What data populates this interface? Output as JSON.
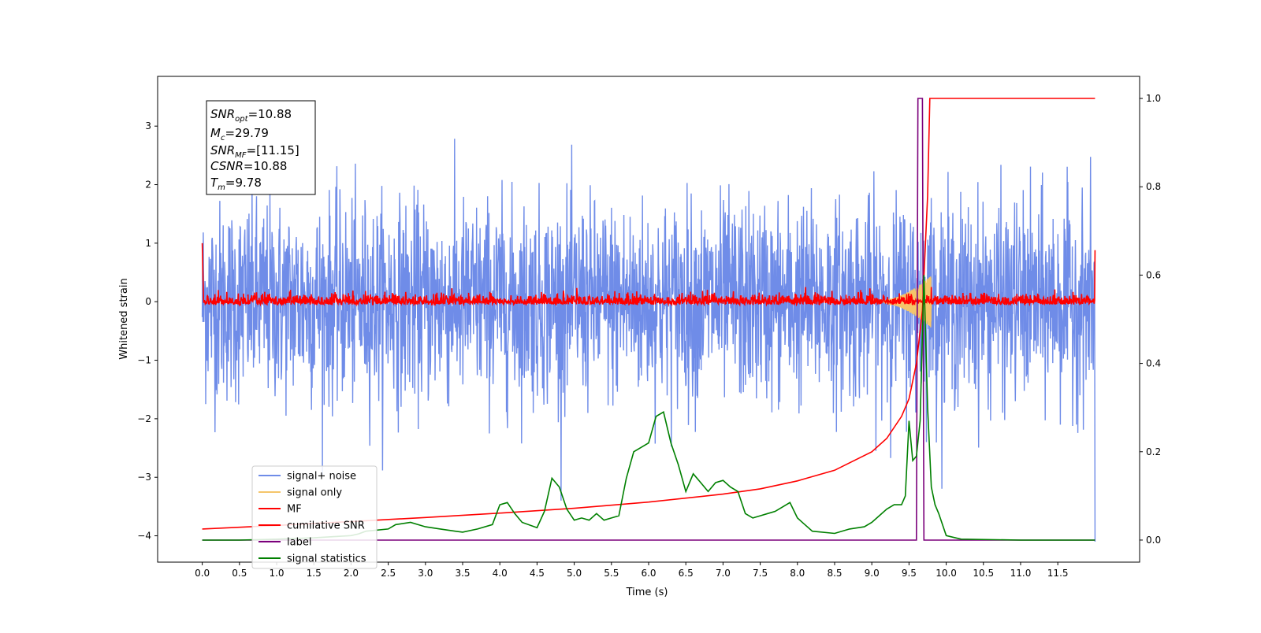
{
  "chart_data": {
    "type": "line",
    "xlabel": "Time (s)",
    "ylabel": "Whitened strain",
    "xlim": [
      -0.6,
      12.6
    ],
    "ylim_left": [
      -4.45,
      3.85
    ],
    "ylim_right": [
      -0.05,
      1.05
    ],
    "x_ticks": [
      "0.0",
      "0.5",
      "1.0",
      "1.5",
      "2.0",
      "2.5",
      "3.0",
      "3.5",
      "4.0",
      "4.5",
      "5.0",
      "5.5",
      "6.0",
      "6.5",
      "7.0",
      "7.5",
      "8.0",
      "8.5",
      "9.0",
      "9.5",
      "10.0",
      "10.5",
      "11.0",
      "11.5"
    ],
    "y_ticks_left": [
      "−4",
      "−3",
      "−2",
      "−1",
      "0",
      "1",
      "2",
      "3"
    ],
    "y_ticks_right": [
      "0.0",
      "0.2",
      "0.4",
      "0.6",
      "0.8",
      "1.0"
    ],
    "legend_position": "lower-left",
    "colors": {
      "signal_noise": "#6f8ce8",
      "signal_only": "#f5c56a",
      "mf": "#ff0000",
      "cumulative_snr": "#ff0000",
      "label": "#7b007b",
      "signal_statistics": "#008000"
    },
    "annotation": {
      "snr_opt": "=10.88",
      "mc": "=29.79",
      "snr_mf": "=[11.15]",
      "csnr": "=10.88",
      "tm": "=9.78"
    },
    "series": [
      {
        "name": "signal+ noise",
        "axis": "left",
        "kind": "noise",
        "x_range": [
          0,
          12
        ],
        "approx_std": 0.85,
        "peak_abs": 3.4
      },
      {
        "name": "signal only",
        "axis": "left",
        "kind": "chirp",
        "x_range": [
          9.0,
          9.8
        ],
        "approx_peak": 0.45
      },
      {
        "name": "MF",
        "axis": "left",
        "kind": "noise",
        "x_range": [
          0,
          12
        ],
        "approx_std": 0.07,
        "start_value": 1.0,
        "end_value": 0.88
      },
      {
        "name": "cumilative SNR",
        "axis": "right",
        "x": [
          0,
          1,
          2,
          3,
          4,
          5,
          6,
          7,
          7.5,
          8,
          8.5,
          9,
          9.2,
          9.4,
          9.5,
          9.6,
          9.68,
          9.75,
          9.78,
          12
        ],
        "y": [
          0.025,
          0.033,
          0.042,
          0.051,
          0.061,
          0.072,
          0.086,
          0.104,
          0.116,
          0.134,
          0.158,
          0.2,
          0.23,
          0.28,
          0.32,
          0.4,
          0.52,
          0.78,
          1.0,
          1.0
        ]
      },
      {
        "name": "label",
        "axis": "right",
        "x": [
          0,
          9.6,
          9.62,
          9.68,
          9.7,
          12
        ],
        "y": [
          0,
          0,
          1,
          1,
          0,
          0
        ]
      },
      {
        "name": "signal statistics",
        "axis": "right",
        "x": [
          0,
          0.5,
          1,
          1.5,
          2,
          2.1,
          2.2,
          2.5,
          2.6,
          2.8,
          3,
          3.2,
          3.4,
          3.5,
          3.7,
          3.9,
          4.0,
          4.1,
          4.2,
          4.3,
          4.5,
          4.6,
          4.7,
          4.8,
          4.9,
          5.0,
          5.1,
          5.2,
          5.3,
          5.4,
          5.5,
          5.6,
          5.7,
          5.8,
          5.9,
          6.0,
          6.1,
          6.2,
          6.3,
          6.4,
          6.5,
          6.6,
          6.7,
          6.8,
          6.9,
          7.0,
          7.1,
          7.2,
          7.3,
          7.4,
          7.5,
          7.6,
          7.7,
          7.8,
          7.9,
          8.0,
          8.1,
          8.2,
          8.5,
          8.7,
          8.9,
          9.0,
          9.1,
          9.2,
          9.3,
          9.4,
          9.45,
          9.5,
          9.55,
          9.6,
          9.65,
          9.7,
          9.75,
          9.8,
          9.85,
          9.9,
          10.0,
          10.2,
          11,
          12
        ],
        "y": [
          0,
          0,
          0.002,
          0.005,
          0.01,
          0.014,
          0.02,
          0.025,
          0.035,
          0.04,
          0.03,
          0.025,
          0.02,
          0.018,
          0.025,
          0.035,
          0.08,
          0.085,
          0.06,
          0.04,
          0.028,
          0.065,
          0.14,
          0.12,
          0.07,
          0.045,
          0.05,
          0.045,
          0.06,
          0.045,
          0.05,
          0.055,
          0.14,
          0.2,
          0.21,
          0.22,
          0.28,
          0.29,
          0.22,
          0.17,
          0.11,
          0.15,
          0.13,
          0.11,
          0.13,
          0.135,
          0.12,
          0.11,
          0.06,
          0.05,
          0.055,
          0.06,
          0.065,
          0.075,
          0.085,
          0.05,
          0.035,
          0.02,
          0.015,
          0.025,
          0.03,
          0.04,
          0.055,
          0.07,
          0.08,
          0.08,
          0.1,
          0.27,
          0.18,
          0.19,
          0.27,
          0.6,
          0.3,
          0.12,
          0.08,
          0.06,
          0.01,
          0.002,
          0,
          0
        ]
      }
    ]
  }
}
